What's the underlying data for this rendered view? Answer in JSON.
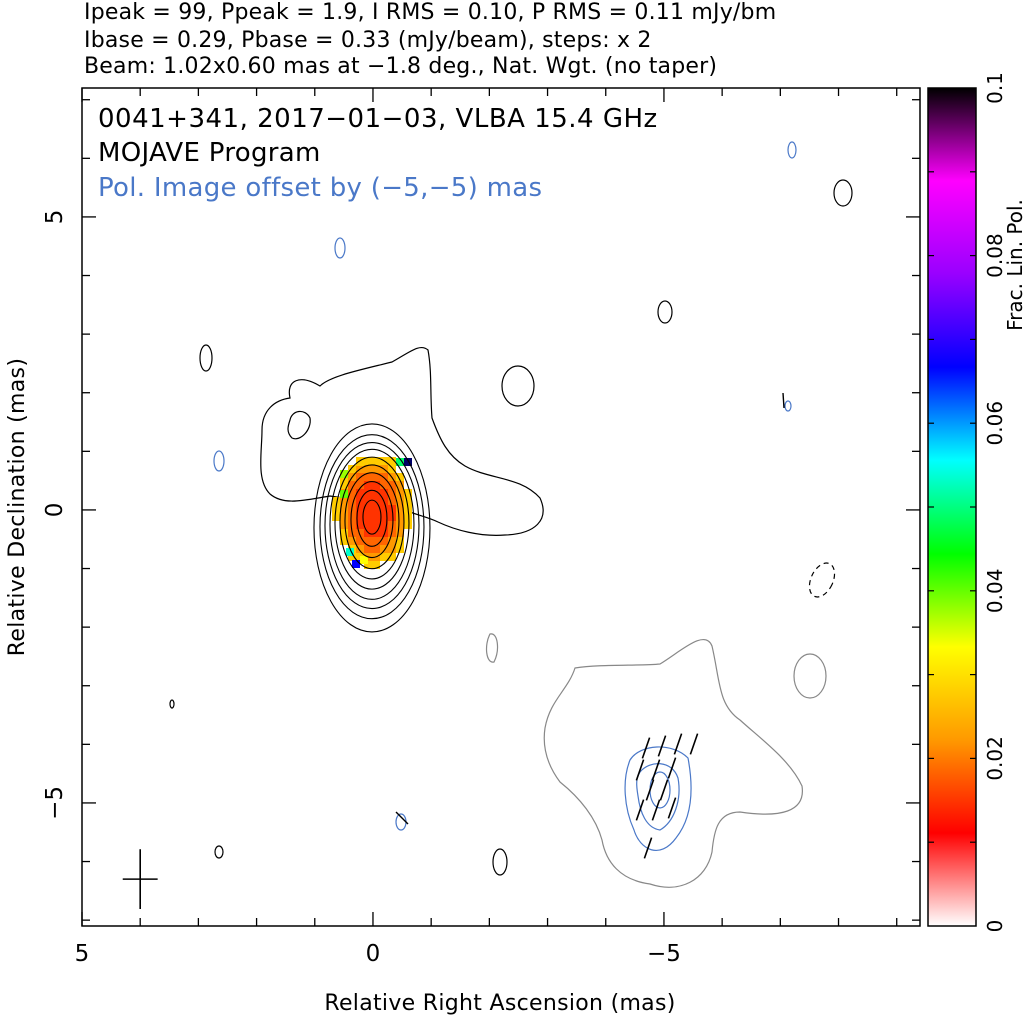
{
  "header": {
    "line1": "Ipeak = 99, Ppeak = 1.9, I RMS = 0.10, P RMS = 0.11 mJy/bm",
    "line2": "Ibase = 0.29, Pbase = 0.33 (mJy/beam), steps: x 2",
    "line3": "Beam: 1.02x0.60 mas at −1.8 deg., Nat. Wgt. (no taper)"
  },
  "chart_data": {
    "type": "heatmap",
    "annotations": [
      "0041+341, 2017−01−03, VLBA 15.4 GHz",
      "MOJAVE Program",
      "Pol. Image offset by (−5,−5) mas"
    ],
    "xlabel": "Relative Right Ascension (mas)",
    "ylabel": "Relative Declination (mas)",
    "xlim": [
      5.0,
      -9.4
    ],
    "ylim": [
      -7.1,
      7.2
    ],
    "x_ticks": [
      5,
      0,
      -5
    ],
    "x_tick_labels": [
      "5",
      "0",
      "−5"
    ],
    "y_ticks": [
      5,
      0,
      -5
    ],
    "y_tick_labels": [
      "5",
      "0",
      "−5"
    ],
    "colorbar": {
      "label": "Frac. Lin. Pol.",
      "range": [
        0,
        0.1
      ],
      "ticks": [
        0,
        0.02,
        0.04,
        0.06,
        0.08,
        0.1
      ],
      "tick_labels": [
        "0",
        "0.02",
        "0.04",
        "0.06",
        "0.08",
        "0.1"
      ],
      "colors": [
        "#ffffff",
        "#ff0000",
        "#ff9900",
        "#ffff00",
        "#00ff00",
        "#00ffff",
        "#0000ff",
        "#9900ff",
        "#ff00ff",
        "#000000"
      ]
    },
    "total_intensity": {
      "peak_mjy_per_beam": 99,
      "base_mjy_per_beam": 0.29,
      "contour_step": 2,
      "core_center": [
        0,
        0
      ],
      "contour_color": "#000000"
    },
    "polarization": {
      "peak_mjy_per_beam": 1.9,
      "base_mjy_per_beam": 0.33,
      "offset_mas": [
        -5,
        -5
      ],
      "contour_color": "#4a78c8",
      "evpa_vectors_deg": [
        -30,
        -30,
        -30,
        -30,
        -30,
        -30,
        -30,
        -30,
        -30,
        -30,
        -30,
        -30,
        -30
      ]
    },
    "beam": {
      "major_mas": 1.02,
      "minor_mas": 0.6,
      "pa_deg": -1.8,
      "position": [
        4.0,
        -6.3
      ]
    }
  }
}
